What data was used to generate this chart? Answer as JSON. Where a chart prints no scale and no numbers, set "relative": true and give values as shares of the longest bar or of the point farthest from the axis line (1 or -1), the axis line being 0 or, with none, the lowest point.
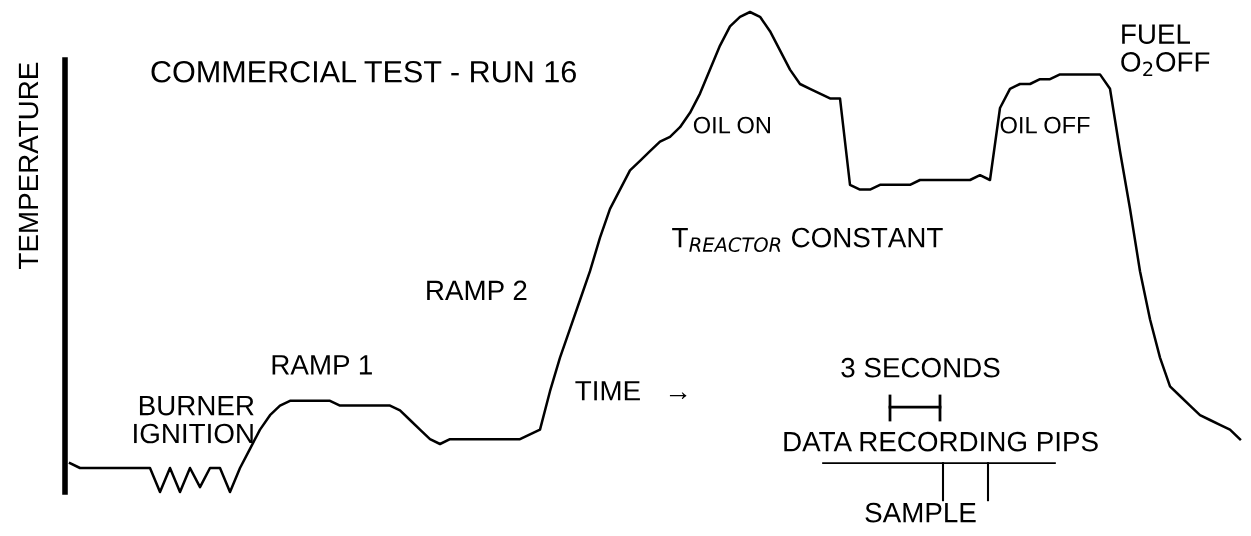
{
  "chart_data": {
    "type": "line",
    "title": "COMMERCIAL TEST - RUN 16",
    "ylabel": "TEMPERATURE",
    "relative": true,
    "categories": [
      null,
      null,
      null,
      null,
      null,
      null,
      null,
      null,
      null,
      null,
      null,
      null,
      null,
      null,
      null,
      null,
      null,
      null,
      null,
      null,
      null,
      null,
      null,
      null,
      null,
      null,
      null,
      null,
      null,
      null,
      null,
      null,
      null,
      null,
      null,
      null,
      null,
      null,
      null,
      null,
      null,
      null,
      null,
      null,
      null,
      null,
      null,
      null,
      null,
      null,
      null,
      null,
      null,
      null,
      null,
      null,
      null,
      null,
      null,
      null,
      null,
      null,
      null,
      null,
      null,
      null,
      null,
      null,
      null,
      null,
      null,
      null,
      null,
      null,
      null,
      null,
      null,
      null,
      null,
      null,
      null,
      null,
      null,
      null,
      null,
      null,
      null,
      null,
      null,
      null,
      null,
      null,
      null,
      null,
      null,
      null,
      null,
      null,
      null,
      null,
      null,
      null,
      null,
      null,
      null,
      null,
      null,
      null,
      null,
      null,
      null,
      null,
      null,
      null,
      null,
      null,
      null,
      null
    ],
    "series": [
      {
        "color": "#000000",
        "values": [
          0.06,
          0.05,
          0.05,
          0.05,
          0.05,
          0.05,
          0.05,
          0.05,
          0.05,
          0.0,
          0.05,
          0,
          0.05,
          0.01,
          0.05,
          0.05,
          0.0,
          0.05,
          0.09,
          0.13,
          0.16,
          0.18,
          0.19,
          0.19,
          0.19,
          0.19,
          0.19,
          0.18,
          0.18,
          0.18,
          0.18,
          0.18,
          0.18,
          0.17,
          0.15,
          0.13,
          0.11,
          0.1,
          0.11,
          0.11,
          0.11,
          0.11,
          0.11,
          0.11,
          0.11,
          0.11,
          0.12,
          0.13,
          0.21,
          0.28,
          0.34,
          0.4,
          0.46,
          0.53,
          0.59,
          0.63,
          0.67,
          0.69,
          0.71,
          0.73,
          0.74,
          0.76,
          0.79,
          0.83,
          0.88,
          0.93,
          0.97,
          0.99,
          1,
          0.99,
          0.96,
          0.92,
          0.88,
          0.85,
          0.84,
          0.83,
          0.82,
          0.82,
          0.64,
          0.63,
          0.63,
          0.64,
          0.64,
          0.64,
          0.64,
          0.65,
          0.65,
          0.65,
          0.65,
          0.65,
          0.65,
          0.66,
          0.65,
          0.8,
          0.84,
          0.85,
          0.85,
          0.86,
          0.86,
          0.87,
          0.87,
          0.87,
          0.87,
          0.87,
          0.84,
          0.71,
          0.59,
          0.46,
          0.36,
          0.28,
          0.22,
          0.2,
          0.18,
          0.16,
          0.15,
          0.14,
          0.13,
          0.11
        ]
      }
    ],
    "marker": "none",
    "line_style": "solid",
    "annotations": [
      "BURNER\nIGNITION",
      "RAMP 1",
      "RAMP 2",
      "TIME   →",
      "OIL ON",
      "T$_{REACTOR}$ CONSTANT",
      "OIL OFF",
      "FUEL\nO$_{2}$OFF",
      "3 SECONDS",
      "DATA RECORDING PIPS",
      "SAMPLE"
    ]
  }
}
